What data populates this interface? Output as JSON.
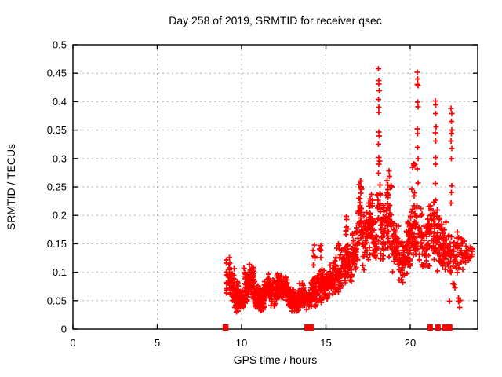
{
  "chart_data": {
    "type": "scatter",
    "title": "Day 258 of 2019, SRMTID for receiver qsec",
    "xlabel": "GPS time / hours",
    "ylabel": "SRMTID / TECUs",
    "xlim": [
      0,
      24
    ],
    "ylim": [
      0,
      0.5
    ],
    "xticks": [
      0,
      5,
      10,
      15,
      20
    ],
    "xtick_labels": [
      "0",
      "5",
      "10",
      "15",
      "20"
    ],
    "yticks": [
      0,
      0.05,
      0.1,
      0.15,
      0.2,
      0.25,
      0.3,
      0.35,
      0.4,
      0.45,
      0.5
    ],
    "ytick_labels": [
      "0",
      "0.05",
      "0.1",
      "0.15",
      "0.2",
      "0.25",
      "0.3",
      "0.35",
      "0.4",
      "0.45",
      "0.5"
    ],
    "grid": true,
    "legend": "none",
    "marker": "plus",
    "marker_color": "#ff0000",
    "grid_color": "#b0b0b0",
    "axis_color": "#000000",
    "bands": [
      [
        9.1,
        9.3,
        0.055,
        0.135,
        25
      ],
      [
        9.3,
        9.6,
        0.045,
        0.11,
        40
      ],
      [
        9.6,
        9.9,
        0.03,
        0.085,
        45
      ],
      [
        9.9,
        10.15,
        0.03,
        0.07,
        40
      ],
      [
        10.15,
        10.45,
        0.045,
        0.11,
        45
      ],
      [
        10.45,
        10.75,
        0.05,
        0.115,
        45
      ],
      [
        10.75,
        11.05,
        0.03,
        0.085,
        45
      ],
      [
        11.05,
        11.35,
        0.025,
        0.075,
        45
      ],
      [
        11.35,
        11.7,
        0.045,
        0.1,
        50
      ],
      [
        11.7,
        12.05,
        0.04,
        0.09,
        45
      ],
      [
        12.05,
        12.4,
        0.045,
        0.1,
        45
      ],
      [
        12.4,
        12.75,
        0.05,
        0.095,
        45
      ],
      [
        12.75,
        13.1,
        0.03,
        0.08,
        45
      ],
      [
        13.1,
        13.45,
        0.025,
        0.075,
        40
      ],
      [
        13.45,
        13.8,
        0.035,
        0.09,
        40
      ],
      [
        13.8,
        14.1,
        0.03,
        0.07,
        35
      ],
      [
        14.1,
        14.45,
        0.035,
        0.105,
        40
      ],
      [
        14.15,
        14.4,
        0.11,
        0.16,
        6
      ],
      [
        14.45,
        14.8,
        0.04,
        0.11,
        40
      ],
      [
        14.55,
        14.75,
        0.115,
        0.155,
        5
      ],
      [
        14.8,
        15.15,
        0.05,
        0.11,
        40
      ],
      [
        15.15,
        15.5,
        0.055,
        0.12,
        40
      ],
      [
        15.5,
        15.85,
        0.06,
        0.13,
        40
      ],
      [
        15.6,
        15.8,
        0.135,
        0.155,
        4
      ],
      [
        15.85,
        16.2,
        0.065,
        0.15,
        40
      ],
      [
        16.05,
        16.3,
        0.16,
        0.205,
        6
      ],
      [
        16.2,
        16.55,
        0.075,
        0.16,
        40
      ],
      [
        16.55,
        16.9,
        0.09,
        0.19,
        40
      ],
      [
        16.9,
        17.15,
        0.11,
        0.28,
        35
      ],
      [
        17.15,
        17.5,
        0.1,
        0.22,
        40
      ],
      [
        17.5,
        17.8,
        0.12,
        0.27,
        40
      ],
      [
        17.8,
        18.05,
        0.1,
        0.2,
        30
      ],
      [
        18.05,
        18.25,
        0.15,
        0.31,
        20
      ],
      [
        18.25,
        18.6,
        0.11,
        0.24,
        40
      ],
      [
        18.6,
        18.9,
        0.12,
        0.3,
        45
      ],
      [
        18.9,
        19.3,
        0.09,
        0.2,
        45
      ],
      [
        19.3,
        19.7,
        0.08,
        0.16,
        40
      ],
      [
        19.7,
        20.0,
        0.09,
        0.2,
        35
      ],
      [
        20.0,
        20.3,
        0.11,
        0.26,
        35
      ],
      [
        20.1,
        20.3,
        0.27,
        0.31,
        4
      ],
      [
        20.3,
        20.7,
        0.1,
        0.23,
        40
      ],
      [
        20.7,
        21.1,
        0.09,
        0.2,
        40
      ],
      [
        21.1,
        21.5,
        0.1,
        0.23,
        40
      ],
      [
        21.5,
        21.9,
        0.1,
        0.22,
        40
      ],
      [
        21.9,
        22.3,
        0.08,
        0.2,
        40
      ],
      [
        22.3,
        22.7,
        0.07,
        0.18,
        30
      ],
      [
        22.3,
        23.1,
        0.03,
        0.06,
        6
      ],
      [
        22.7,
        23.1,
        0.08,
        0.19,
        25
      ],
      [
        23.1,
        23.5,
        0.1,
        0.16,
        20
      ],
      [
        23.5,
        23.7,
        0.118,
        0.145,
        8
      ]
    ],
    "spike_points": [
      [
        18.12,
        0.458
      ],
      [
        18.15,
        0.437
      ],
      [
        18.13,
        0.431
      ],
      [
        18.16,
        0.419
      ],
      [
        18.12,
        0.404
      ],
      [
        18.15,
        0.39
      ],
      [
        18.13,
        0.381
      ],
      [
        18.14,
        0.347
      ],
      [
        18.16,
        0.34
      ],
      [
        18.12,
        0.325
      ],
      [
        18.15,
        0.302
      ],
      [
        18.13,
        0.29
      ],
      [
        20.42,
        0.452
      ],
      [
        20.45,
        0.44
      ],
      [
        20.43,
        0.43
      ],
      [
        20.47,
        0.428
      ],
      [
        20.44,
        0.399
      ],
      [
        20.46,
        0.391
      ],
      [
        20.42,
        0.352
      ],
      [
        20.45,
        0.344
      ],
      [
        20.44,
        0.32
      ],
      [
        20.47,
        0.3
      ],
      [
        20.43,
        0.282
      ],
      [
        20.46,
        0.257
      ],
      [
        21.48,
        0.401
      ],
      [
        21.52,
        0.394
      ],
      [
        21.5,
        0.379
      ],
      [
        21.53,
        0.356
      ],
      [
        21.49,
        0.345
      ],
      [
        21.51,
        0.331
      ],
      [
        21.5,
        0.302
      ],
      [
        21.52,
        0.29
      ],
      [
        21.49,
        0.256
      ],
      [
        22.43,
        0.388
      ],
      [
        22.46,
        0.379
      ],
      [
        22.44,
        0.365
      ],
      [
        22.47,
        0.35
      ],
      [
        22.45,
        0.344
      ],
      [
        22.43,
        0.331
      ],
      [
        22.46,
        0.318
      ],
      [
        22.44,
        0.3
      ],
      [
        22.47,
        0.252
      ],
      [
        22.45,
        0.24
      ],
      [
        22.43,
        0.222
      ]
    ],
    "zero_markers": [
      [
        9.05,
        0.35
      ],
      [
        14.0,
        0.55
      ],
      [
        21.18,
        0.28
      ],
      [
        21.64,
        0.28
      ],
      [
        22.2,
        0.6
      ]
    ]
  }
}
